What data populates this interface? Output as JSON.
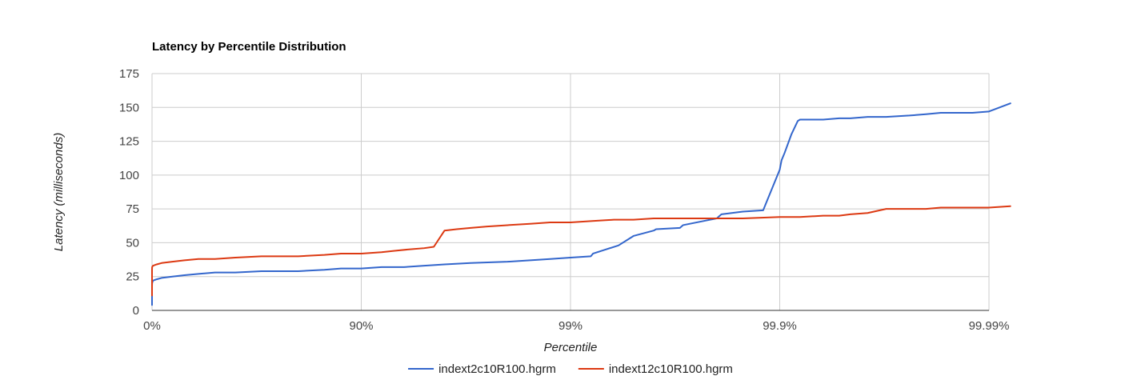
{
  "chart_data": {
    "type": "line",
    "title": "Latency by Percentile Distribution",
    "xlabel": "Percentile",
    "ylabel": "Latency (milliseconds)",
    "x_scale": "log10(1/(1-percentile))",
    "xlim_percentile": [
      "0%",
      "99.99%"
    ],
    "xticks": [
      "0%",
      "90%",
      "99%",
      "99.9%",
      "99.99%"
    ],
    "ylim": [
      0,
      175
    ],
    "yticks": [
      0,
      25,
      50,
      75,
      100,
      125,
      150,
      175
    ],
    "grid": true,
    "legend_position": "bottom",
    "series": [
      {
        "name": "indext2c10R100.hgrm",
        "color": "#3366cc",
        "points": [
          [
            0,
            4
          ],
          [
            1e-06,
            7
          ],
          [
            3e-06,
            10
          ],
          [
            6e-06,
            12
          ],
          [
            1e-05,
            13
          ],
          [
            2e-05,
            14
          ],
          [
            5e-05,
            16
          ],
          [
            7e-05,
            17
          ],
          [
            0.0001,
            18
          ],
          [
            0.0005,
            19
          ],
          [
            0.001,
            20
          ],
          [
            0.005,
            21
          ],
          [
            0.01,
            22
          ],
          [
            0.05,
            23
          ],
          [
            0.1,
            24
          ],
          [
            0.2,
            25
          ],
          [
            0.3,
            26
          ],
          [
            0.4,
            27
          ],
          [
            0.5,
            28
          ],
          [
            0.6,
            28
          ],
          [
            0.7,
            29
          ],
          [
            0.8,
            29
          ],
          [
            0.85,
            30
          ],
          [
            0.875,
            31
          ],
          [
            0.9,
            31
          ],
          [
            0.92,
            32
          ],
          [
            0.9375,
            32
          ],
          [
            0.95,
            33
          ],
          [
            0.96,
            34
          ],
          [
            0.97,
            35
          ],
          [
            0.98,
            36
          ],
          [
            0.9844,
            37
          ],
          [
            0.9875,
            38
          ],
          [
            0.99,
            39
          ],
          [
            0.992,
            40
          ],
          [
            0.9922,
            42
          ],
          [
            0.9941,
            48
          ],
          [
            0.995,
            55
          ],
          [
            0.996,
            59
          ],
          [
            0.9961,
            60
          ],
          [
            0.997,
            61
          ],
          [
            0.9971,
            63
          ],
          [
            0.998,
            68
          ],
          [
            0.9981,
            71
          ],
          [
            0.9985,
            73
          ],
          [
            0.9988,
            74
          ],
          [
            0.999,
            104
          ],
          [
            0.99902,
            111
          ],
          [
            0.99905,
            116
          ],
          [
            0.99912,
            130
          ],
          [
            0.99918,
            140
          ],
          [
            0.9992,
            141
          ],
          [
            0.99938,
            141
          ],
          [
            0.99948,
            142
          ],
          [
            0.99954,
            142
          ],
          [
            0.99962,
            143
          ],
          [
            0.99969,
            143
          ],
          [
            0.99976,
            144
          ],
          [
            0.9998,
            145
          ],
          [
            0.99983,
            146
          ],
          [
            0.99986,
            146
          ],
          [
            0.99988,
            146
          ],
          [
            0.9999,
            147
          ],
          [
            0.999921,
            153
          ]
        ]
      },
      {
        "name": "indext12c10R100.hgrm",
        "color": "#dc3912",
        "points": [
          [
            0,
            11
          ],
          [
            1e-06,
            17
          ],
          [
            3e-06,
            21
          ],
          [
            6e-06,
            26
          ],
          [
            1e-05,
            27
          ],
          [
            2e-05,
            28
          ],
          [
            5e-05,
            29
          ],
          [
            0.0001,
            30
          ],
          [
            0.0005,
            31
          ],
          [
            0.001,
            32
          ],
          [
            0.01,
            33
          ],
          [
            0.05,
            34
          ],
          [
            0.1,
            35
          ],
          [
            0.2,
            36
          ],
          [
            0.3,
            37
          ],
          [
            0.4,
            38
          ],
          [
            0.5,
            38
          ],
          [
            0.6,
            39
          ],
          [
            0.7,
            40
          ],
          [
            0.8,
            40
          ],
          [
            0.85,
            41
          ],
          [
            0.875,
            42
          ],
          [
            0.9,
            42
          ],
          [
            0.92,
            43
          ],
          [
            0.93,
            44
          ],
          [
            0.94,
            45
          ],
          [
            0.95,
            46
          ],
          [
            0.955,
            47
          ],
          [
            0.96,
            59
          ],
          [
            0.965,
            60
          ],
          [
            0.97,
            61
          ],
          [
            0.975,
            62
          ],
          [
            0.98,
            63
          ],
          [
            0.9844,
            64
          ],
          [
            0.9875,
            65
          ],
          [
            0.99,
            65
          ],
          [
            0.992,
            66
          ],
          [
            0.9938,
            67
          ],
          [
            0.995,
            67
          ],
          [
            0.996,
            68
          ],
          [
            0.997,
            68
          ],
          [
            0.998,
            68
          ],
          [
            0.9985,
            68
          ],
          [
            0.999,
            69
          ],
          [
            0.9992,
            69
          ],
          [
            0.99938,
            70
          ],
          [
            0.99948,
            70
          ],
          [
            0.99954,
            71
          ],
          [
            0.99962,
            72
          ],
          [
            0.99969,
            75
          ],
          [
            0.99975,
            75
          ],
          [
            0.9998,
            75
          ],
          [
            0.99983,
            76
          ],
          [
            0.99986,
            76
          ],
          [
            0.99988,
            76
          ],
          [
            0.9999,
            76
          ],
          [
            0.999921,
            77
          ]
        ]
      }
    ]
  }
}
